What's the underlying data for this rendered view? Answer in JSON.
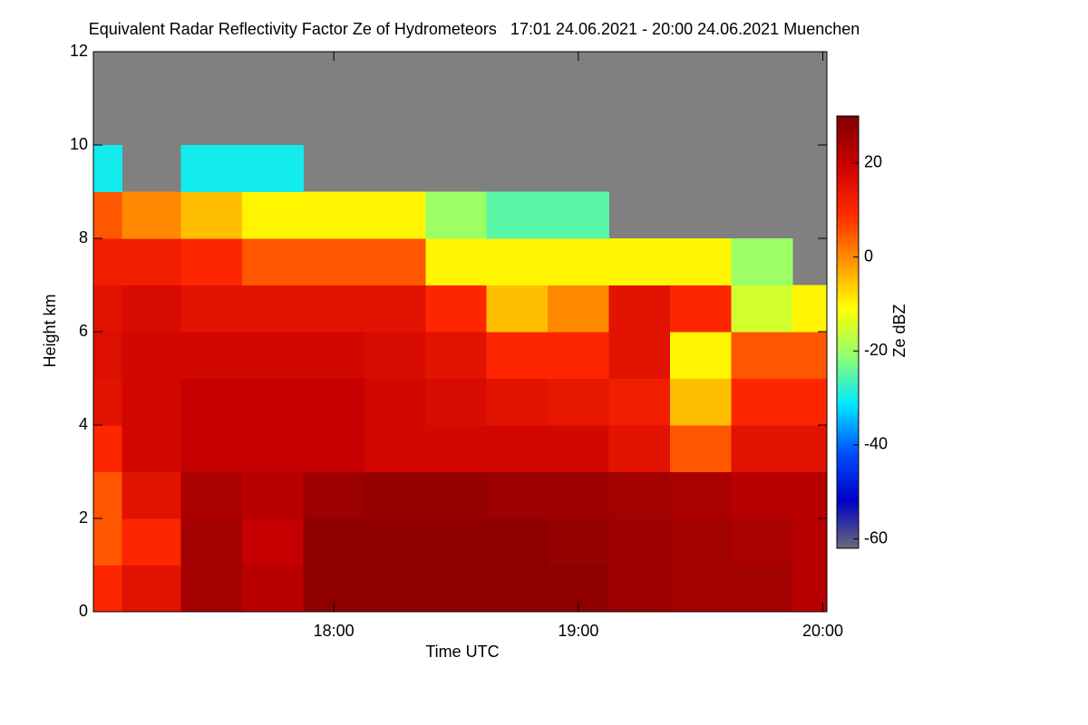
{
  "chart_data": {
    "type": "heatmap",
    "title": "Equivalent Radar Reflectivity Factor Ze of Hydrometeors   17:01 24.06.2021 - 20:00 24.06.2021 Muenchen",
    "x_label": "Time UTC",
    "y_label": "Height km",
    "colorbar_label": "Ze dBZ",
    "x": [
      "17:01",
      "17:15",
      "17:30",
      "17:45",
      "18:00",
      "18:15",
      "18:30",
      "18:45",
      "19:00",
      "19:15",
      "19:30",
      "19:45",
      "20:00"
    ],
    "y": [
      0.5,
      1.5,
      2.5,
      3.5,
      4.5,
      5.5,
      6.5,
      7.5,
      8.5,
      9.5,
      10.5,
      11.5
    ],
    "values": [
      [
        10,
        15,
        25,
        22,
        28,
        28,
        28,
        28,
        28,
        26,
        25,
        25,
        22
      ],
      [
        5,
        10,
        25,
        20,
        28,
        28,
        28,
        28,
        27,
        26,
        25,
        24,
        22
      ],
      [
        5,
        15,
        24,
        22,
        26,
        27,
        27,
        26,
        26,
        25,
        24,
        22,
        22
      ],
      [
        10,
        18,
        20,
        20,
        20,
        18,
        18,
        18,
        18,
        15,
        5,
        15,
        15
      ],
      [
        15,
        18,
        20,
        20,
        20,
        18,
        17,
        15,
        14,
        12,
        -5,
        10,
        10
      ],
      [
        16,
        18,
        18,
        18,
        18,
        17,
        15,
        10,
        10,
        15,
        -10,
        5,
        5
      ],
      [
        15,
        17,
        15,
        15,
        15,
        15,
        10,
        -5,
        0,
        15,
        10,
        -15,
        -10
      ],
      [
        12,
        12,
        10,
        5,
        5,
        5,
        -10,
        -10,
        -10,
        -10,
        -10,
        -20,
        null
      ],
      [
        5,
        0,
        -5,
        -10,
        -10,
        -10,
        -20,
        -25,
        -25,
        null,
        null,
        null,
        null
      ],
      [
        -30,
        null,
        -30,
        -30,
        null,
        null,
        null,
        null,
        null,
        null,
        null,
        null,
        null
      ],
      [
        null,
        null,
        null,
        null,
        null,
        null,
        null,
        null,
        null,
        null,
        null,
        null,
        null
      ],
      [
        null,
        null,
        null,
        null,
        null,
        null,
        null,
        null,
        null,
        null,
        null,
        null,
        null
      ]
    ],
    "xlim": [
      "17:01",
      "20:01"
    ],
    "xticks": [
      "18:00",
      "19:00",
      "20:00"
    ],
    "ylim": [
      0,
      12
    ],
    "yticks": [
      0,
      2,
      4,
      6,
      8,
      10,
      12
    ],
    "clim": [
      -62,
      30
    ],
    "cticks": [
      -60,
      -40,
      -20,
      0,
      20
    ],
    "colormap": [
      "#6a6a7a",
      "#0000c8",
      "#0050ff",
      "#00e8ff",
      "#90ff70",
      "#ffff00",
      "#ff9000",
      "#ff2800",
      "#c80000",
      "#800000"
    ],
    "missing_color": "#808080"
  }
}
